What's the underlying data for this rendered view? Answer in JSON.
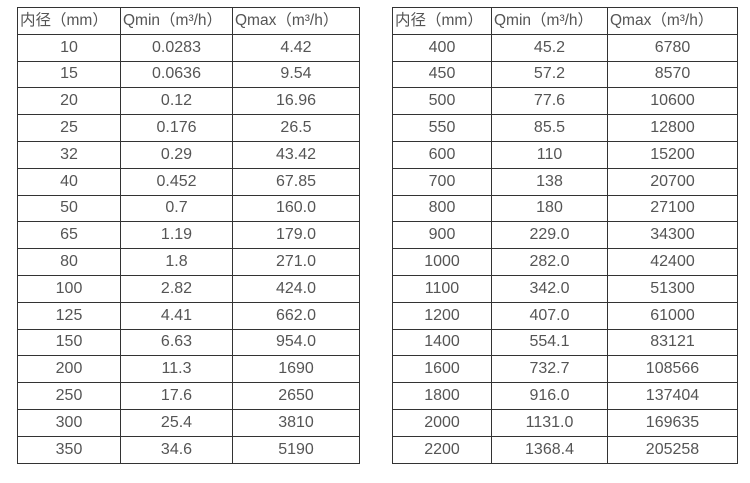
{
  "headers": [
    "内径（mm）",
    "Qmin（m³/h）",
    "Qmax（m³/h）"
  ],
  "left_table": {
    "rows": [
      [
        "10",
        "0.0283",
        "4.42"
      ],
      [
        "15",
        "0.0636",
        "9.54"
      ],
      [
        "20",
        "0.12",
        "16.96"
      ],
      [
        "25",
        "0.176",
        "26.5"
      ],
      [
        "32",
        "0.29",
        "43.42"
      ],
      [
        "40",
        "0.452",
        "67.85"
      ],
      [
        "50",
        "0.7",
        "160.0"
      ],
      [
        "65",
        "1.19",
        "179.0"
      ],
      [
        "80",
        "1.8",
        "271.0"
      ],
      [
        "100",
        "2.82",
        "424.0"
      ],
      [
        "125",
        "4.41",
        "662.0"
      ],
      [
        "150",
        "6.63",
        "954.0"
      ],
      [
        "200",
        "11.3",
        "1690"
      ],
      [
        "250",
        "17.6",
        "2650"
      ],
      [
        "300",
        "25.4",
        "3810"
      ],
      [
        "350",
        "34.6",
        "5190"
      ]
    ]
  },
  "right_table": {
    "rows": [
      [
        "400",
        "45.2",
        "6780"
      ],
      [
        "450",
        "57.2",
        "8570"
      ],
      [
        "500",
        "77.6",
        "10600"
      ],
      [
        "550",
        "85.5",
        "12800"
      ],
      [
        "600",
        "110",
        "15200"
      ],
      [
        "700",
        "138",
        "20700"
      ],
      [
        "800",
        "180",
        "27100"
      ],
      [
        "900",
        "229.0",
        "34300"
      ],
      [
        "1000",
        "282.0",
        "42400"
      ],
      [
        "1100",
        "342.0",
        "51300"
      ],
      [
        "1200",
        "407.0",
        "61000"
      ],
      [
        "1400",
        "554.1",
        "83121"
      ],
      [
        "1600",
        "732.7",
        "108566"
      ],
      [
        "1800",
        "916.0",
        "137404"
      ],
      [
        "2000",
        "1131.0",
        "169635"
      ],
      [
        "2200",
        "1368.4",
        "205258"
      ]
    ]
  },
  "colors": {
    "border": "#333333",
    "text": "#555555",
    "background": "#ffffff"
  }
}
